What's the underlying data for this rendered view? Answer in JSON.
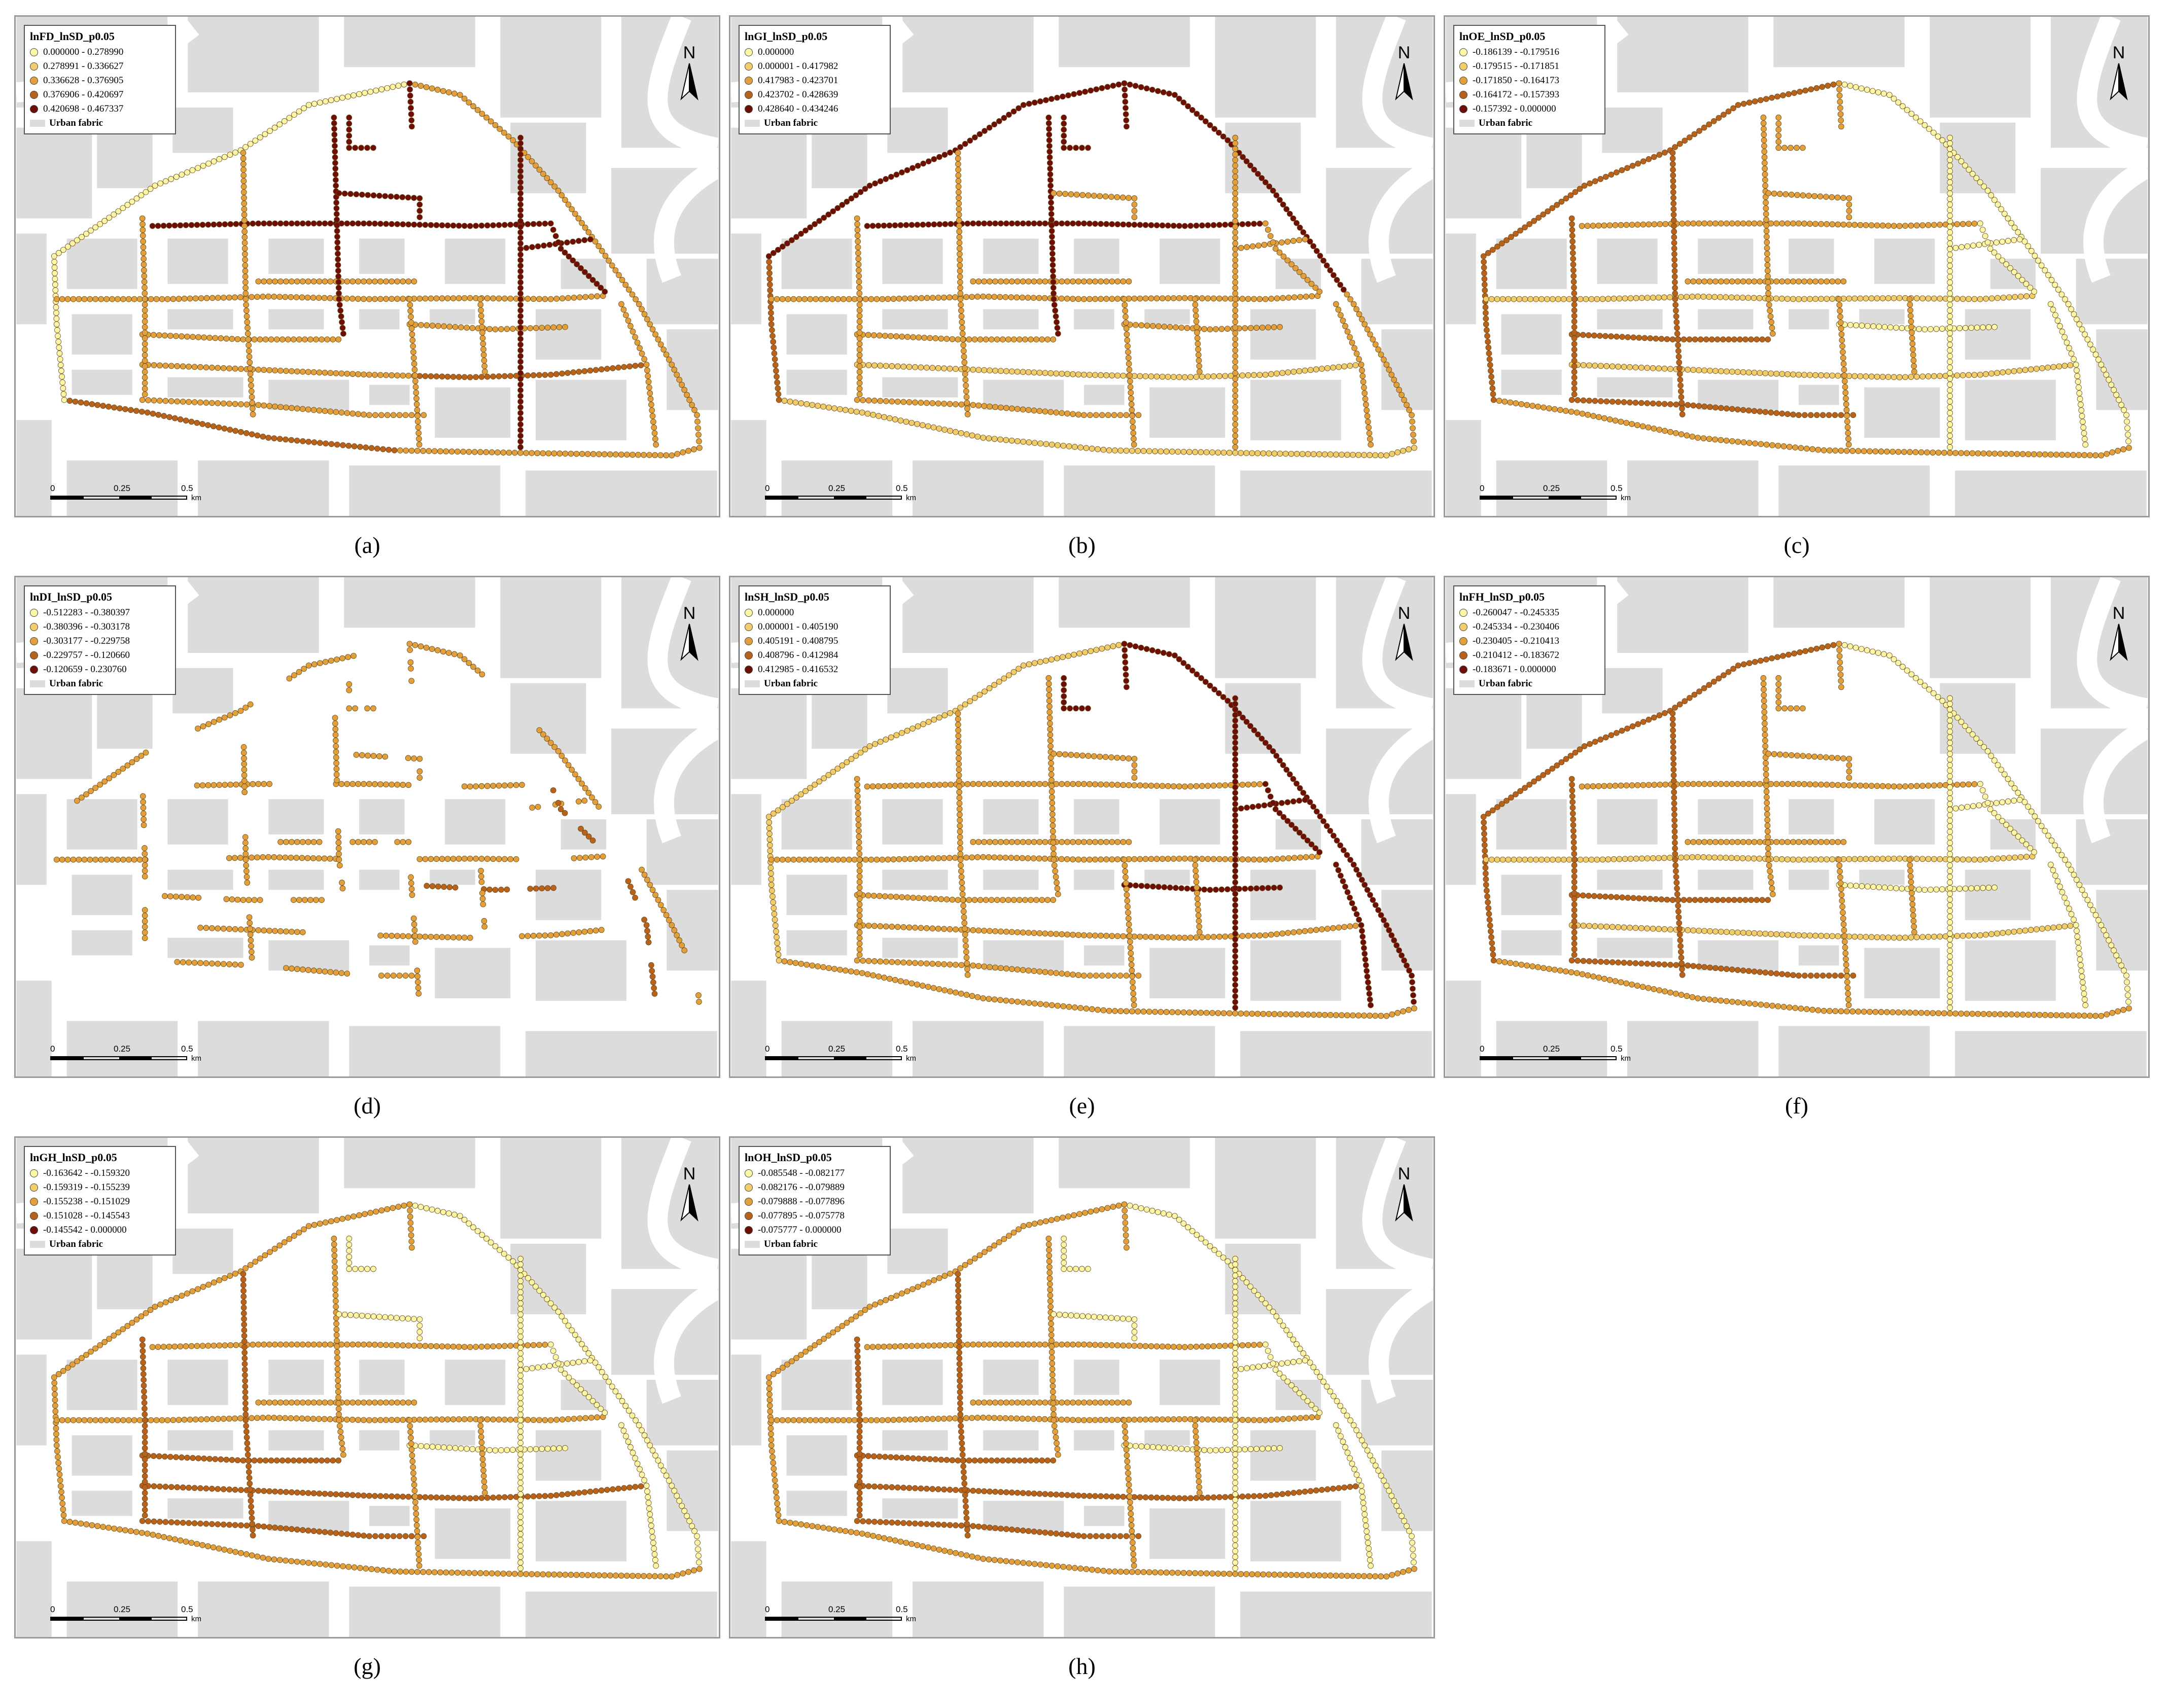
{
  "urban_fabric_label": "Urban fabric",
  "north_label": "N",
  "scale": {
    "ticks": [
      "0",
      "0.25",
      "0.5"
    ],
    "unit": "km"
  },
  "palette": [
    "#fbf7a7",
    "#f1cc6a",
    "#e1a03b",
    "#b8621c",
    "#6e0f07"
  ],
  "panels": [
    {
      "caption": "(a)",
      "legend_title": "lnFD_lnSD_p0.05",
      "classes": [
        "0.000000 - 0.278990",
        "0.278991 - 0.336627",
        "0.336628 - 0.376905",
        "0.376906 - 0.420697",
        "0.420698 - 0.467337"
      ],
      "pattern": "east-dark"
    },
    {
      "caption": "(b)",
      "legend_title": "lnGI_lnSD_p0.05",
      "classes": [
        "0.000000",
        "0.000001 - 0.417982",
        "0.417983 - 0.423701",
        "0.423702 - 0.428639",
        "0.428640 - 0.434246"
      ],
      "pattern": "north-dark"
    },
    {
      "caption": "(c)",
      "legend_title": "lnOE_lnSD_p0.05",
      "classes": [
        "-0.186139 - -0.179516",
        "-0.179515 - -0.171851",
        "-0.171850 - -0.164173",
        "-0.164172 - -0.157393",
        "-0.157392 - 0.000000"
      ],
      "pattern": "west-dark"
    },
    {
      "caption": "(d)",
      "legend_title": "lnDI_lnSD_p0.05",
      "classes": [
        "-0.512283 - -0.380397",
        "-0.380396 - -0.303178",
        "-0.303177 - -0.229758",
        "-0.229757 - -0.120660",
        "-0.120659 - 0.230760"
      ],
      "pattern": "fragmented"
    },
    {
      "caption": "(e)",
      "legend_title": "lnSH_lnSD_p0.05",
      "classes": [
        "0.000000",
        "0.000001 - 0.405190",
        "0.405191 - 0.408795",
        "0.408796 - 0.412984",
        "0.412985 - 0.416532"
      ],
      "pattern": "northeast-dark"
    },
    {
      "caption": "(f)",
      "legend_title": "lnFH_lnSD_p0.05",
      "classes": [
        "-0.260047 - -0.245335",
        "-0.245334 - -0.230406",
        "-0.230405 - -0.210413",
        "-0.210412 - -0.183672",
        "-0.183671 - 0.000000"
      ],
      "pattern": "west-dark"
    },
    {
      "caption": "(g)",
      "legend_title": "lnGH_lnSD_p0.05",
      "classes": [
        "-0.163642 - -0.159320",
        "-0.159319 - -0.155239",
        "-0.155238 - -0.151029",
        "-0.151028 - -0.145543",
        "-0.145542 - 0.000000"
      ],
      "pattern": "south-mid"
    },
    {
      "caption": "(h)",
      "legend_title": "lnOH_lnSD_p0.05",
      "classes": [
        "-0.085548 - -0.082177",
        "-0.082176 - -0.079889",
        "-0.079888 - -0.077896",
        "-0.077895 - -0.075778",
        "-0.075777 - 0.000000"
      ],
      "pattern": "south-mid"
    }
  ]
}
